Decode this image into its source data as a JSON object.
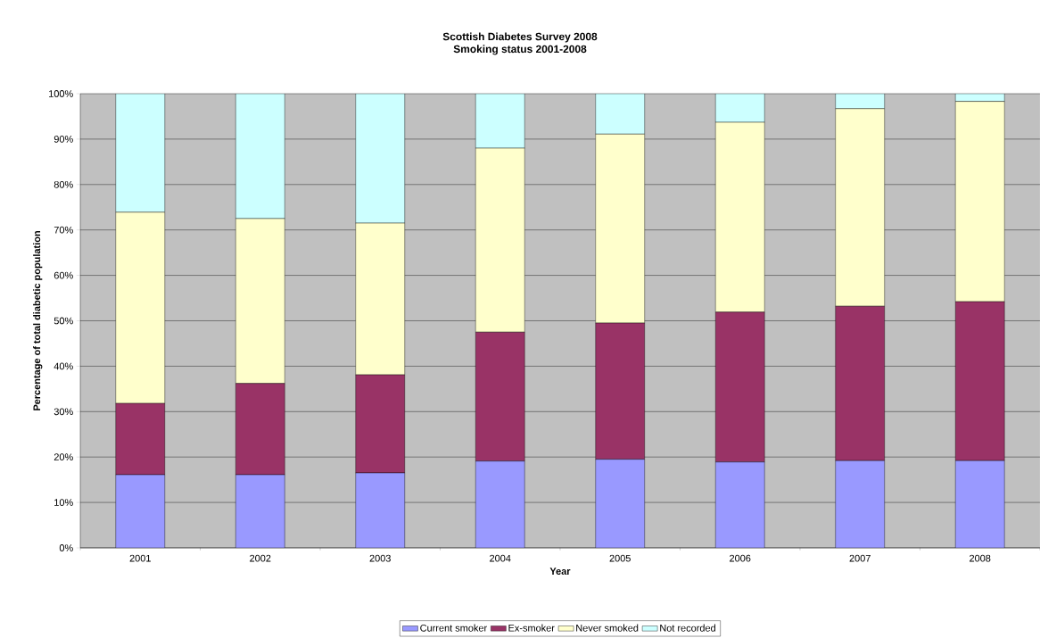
{
  "chart_data": {
    "type": "bar",
    "stacked": true,
    "title": "Scottish Diabetes Survey 2008",
    "subtitle": "Smoking status 2001-2008",
    "xlabel": "Year",
    "ylabel": "Percentage of total diabetic population",
    "categories": [
      "2001",
      "2002",
      "2003",
      "2004",
      "2005",
      "2006",
      "2007",
      "2008"
    ],
    "series": [
      {
        "name": "Current smoker",
        "color": "#9999ff",
        "values": [
          16.1,
          16.1,
          16.5,
          19.1,
          19.5,
          18.9,
          19.2,
          19.2
        ]
      },
      {
        "name": "Ex-smoker",
        "color": "#993366",
        "values": [
          15.7,
          20.1,
          21.6,
          28.4,
          30.0,
          33.0,
          34.0,
          35.0
        ]
      },
      {
        "name": "Never smoked",
        "color": "#ffffcc",
        "values": [
          42.1,
          36.3,
          33.4,
          40.5,
          41.6,
          41.8,
          43.5,
          44.1
        ]
      },
      {
        "name": "Not recorded",
        "color": "#ccffff",
        "values": [
          26.1,
          27.5,
          28.5,
          12.0,
          8.9,
          6.3,
          3.3,
          1.7
        ]
      }
    ],
    "ylim": [
      0,
      100
    ],
    "yticks": [
      {
        "value": 0,
        "label": "0%"
      },
      {
        "value": 10,
        "label": "10%"
      },
      {
        "value": 20,
        "label": "20%"
      },
      {
        "value": 30,
        "label": "30%"
      },
      {
        "value": 40,
        "label": "40%"
      },
      {
        "value": 50,
        "label": "50%"
      },
      {
        "value": 60,
        "label": "60%"
      },
      {
        "value": 70,
        "label": "70%"
      },
      {
        "value": 80,
        "label": "80%"
      },
      {
        "value": 90,
        "label": "90%"
      },
      {
        "value": 100,
        "label": "100%"
      }
    ],
    "grid": "y",
    "legend": "bottom"
  }
}
